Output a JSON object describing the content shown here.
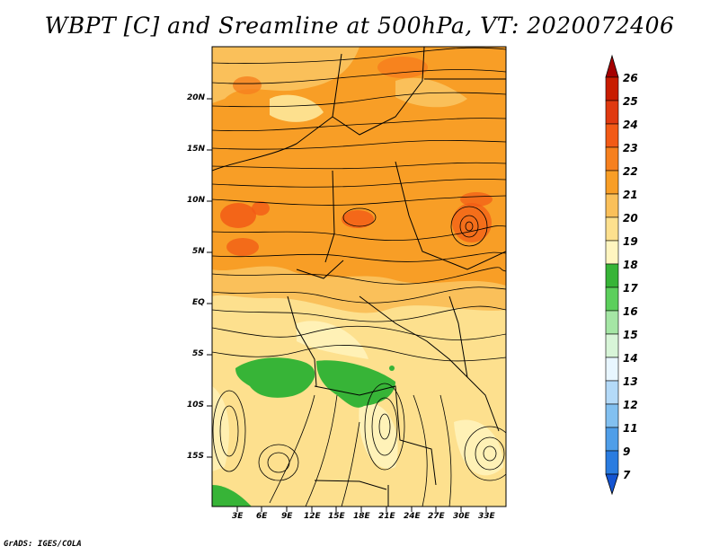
{
  "title": "WBPT [C] and Sreamline at 500hPa, VT: 2020072406",
  "credit": "GrADS: IGES/COLA",
  "map": {
    "lat_labels": [
      "20N",
      "15N",
      "10N",
      "5N",
      "EQ",
      "5S",
      "10S",
      "15S"
    ],
    "lon_labels": [
      "3E",
      "6E",
      "9E",
      "12E",
      "15E",
      "18E",
      "21E",
      "24E",
      "27E",
      "30E",
      "33E"
    ]
  },
  "colorbar": {
    "labels": [
      "26",
      "25",
      "24",
      "23",
      "22",
      "21",
      "20",
      "19",
      "18",
      "17",
      "16",
      "15",
      "14",
      "13",
      "12",
      "11",
      "9",
      "7"
    ],
    "colors": [
      "#a50000",
      "#c81c00",
      "#e03a10",
      "#f25a16",
      "#f6801e",
      "#f89e26",
      "#fac05a",
      "#fde08e",
      "#fff5c0",
      "#37b437",
      "#5ccf5c",
      "#a5e6a5",
      "#d8f5d8",
      "#e8f6ff",
      "#b4daf8",
      "#82c0f0",
      "#4f9ee8",
      "#2a7ce0",
      "#1454d2"
    ]
  }
}
